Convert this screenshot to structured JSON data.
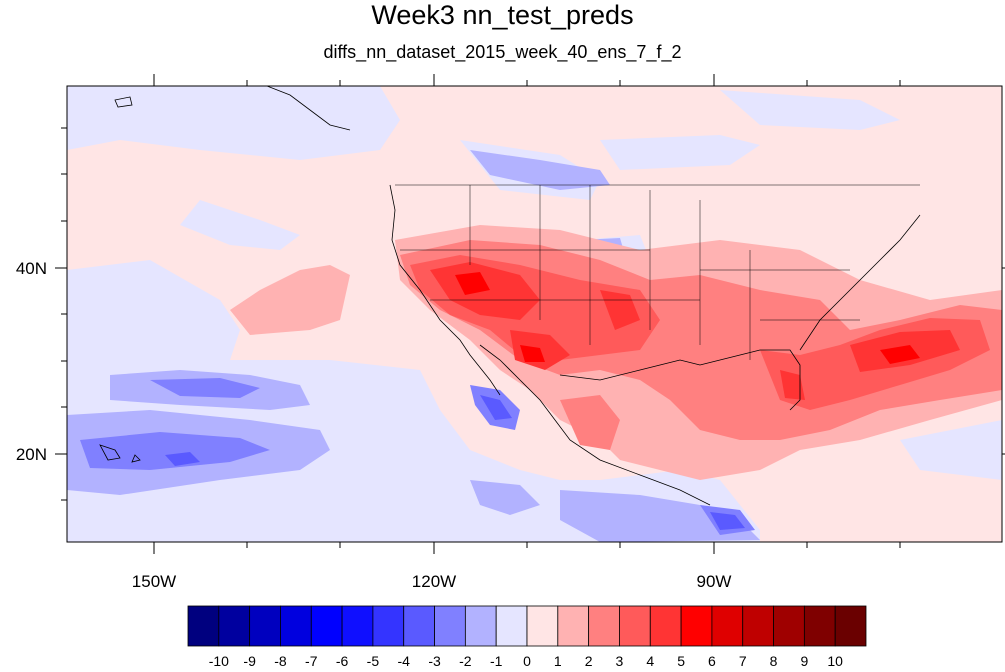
{
  "title": "Week3 nn_test_preds",
  "subtitle": "diffs_nn_dataset_2015_week_40_ens_7_f_2",
  "map": {
    "lon_range": [
      -160,
      -60
    ],
    "lat_range": [
      10,
      59
    ],
    "x_tick_labels": [
      "150W",
      "120W",
      "90W"
    ],
    "y_tick_labels": [
      "40N",
      "20N"
    ]
  },
  "colorbar": {
    "colors": [
      "#00007f",
      "#00009f",
      "#0000bf",
      "#0000df",
      "#0000ff",
      "#0f0fff",
      "#3434ff",
      "#5a5aff",
      "#8080ff",
      "#b2b2ff",
      "#e5e5ff",
      "#ffe5e5",
      "#ffb2b2",
      "#ff8080",
      "#ff5a5a",
      "#ff3434",
      "#ff0000",
      "#df0000",
      "#bf0000",
      "#9f0000",
      "#7f0000",
      "#6a0000"
    ],
    "labels": [
      "-10",
      "-9",
      "-8",
      "-7",
      "-6",
      "-5",
      "-4",
      "-3",
      "-2",
      "-1",
      "0",
      "1",
      "2",
      "3",
      "4",
      "5",
      "6",
      "7",
      "8",
      "9",
      "10"
    ]
  }
}
